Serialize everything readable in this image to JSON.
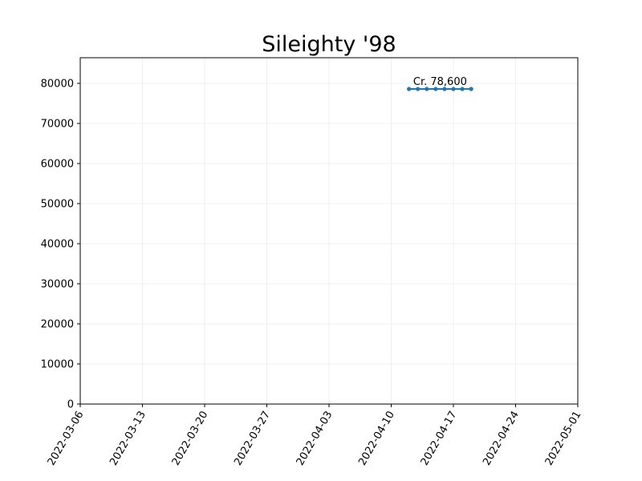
{
  "chart_data": {
    "type": "line",
    "title": "Sileighty '98",
    "xlabel": "",
    "ylabel": "",
    "x_tick_labels": [
      "2022-03-06",
      "2022-03-13",
      "2022-03-20",
      "2022-03-27",
      "2022-04-03",
      "2022-04-10",
      "2022-04-17",
      "2022-04-24",
      "2022-05-01"
    ],
    "y_tick_labels": [
      "0",
      "10000",
      "20000",
      "30000",
      "40000",
      "50000",
      "60000",
      "70000",
      "80000"
    ],
    "xlim": [
      "2022-03-06",
      "2022-05-01"
    ],
    "ylim": [
      0,
      86400
    ],
    "grid": true,
    "series": [
      {
        "color": "#1f77b4",
        "x": [
          "2022-04-12",
          "2022-04-13",
          "2022-04-14",
          "2022-04-15",
          "2022-04-16",
          "2022-04-17",
          "2022-04-18",
          "2022-04-19"
        ],
        "y": [
          78600,
          78600,
          78600,
          78600,
          78600,
          78600,
          78600,
          78600
        ]
      }
    ],
    "annotations": [
      {
        "text": "Cr. 78,600",
        "x": "2022-04-15.5",
        "y": 78600
      }
    ]
  }
}
